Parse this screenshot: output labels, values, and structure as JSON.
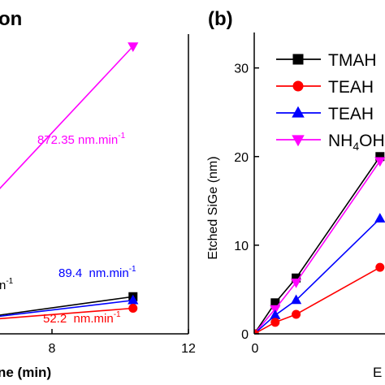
{
  "chart_data": [
    {
      "type": "line",
      "title": "on",
      "xlabel": "ne (min)",
      "ylabel": "",
      "xlim": [
        5.2,
        12
      ],
      "ylim": [
        -4.2,
        45
      ],
      "x_ticks": [
        "8",
        "12"
      ],
      "series": [
        {
          "color": "#ff00ff",
          "marker": "triangle-down",
          "x": [
            3,
            10
          ],
          "y": [
            9,
            43
          ]
        },
        {
          "color": "#000000",
          "marker": "square",
          "x": [
            3,
            10
          ],
          "y": [
            -2.5,
            1.9
          ]
        },
        {
          "color": "#0000ff",
          "marker": "triangle-up",
          "x": [
            3,
            10
          ],
          "y": [
            -2.5,
            1.3
          ]
        },
        {
          "color": "#ff0000",
          "marker": "circle",
          "x": [
            3,
            10
          ],
          "y": [
            -2.5,
            0.0
          ]
        }
      ],
      "annotations": [
        {
          "text": "872.35 nm.min",
          "sup": "-1",
          "color": "#ff00ff"
        },
        {
          "text": "89.4  nm.min",
          "sup": "-1",
          "color": "#0000ff"
        },
        {
          "text": "52.2  nm.min",
          "sup": "-1",
          "color": "#ff0000"
        },
        {
          "text": "n",
          "sup": "-1",
          "color": "#000000"
        }
      ]
    },
    {
      "type": "line",
      "panel_label": "(b)",
      "xlabel": "E",
      "ylabel": "Etched SiGe (nm)",
      "xlim": [
        0,
        6
      ],
      "ylim": [
        0,
        34
      ],
      "y_ticks": [
        0,
        10,
        20,
        30
      ],
      "x_ticks": [
        "0"
      ],
      "legend": {
        "placement": "top-right",
        "entries": [
          {
            "label": "TMAH",
            "sub": "",
            "after": "",
            "color": "#000000",
            "marker": "square"
          },
          {
            "label": "TEAH",
            "sub": "",
            "after": "",
            "color": "#ff0000",
            "marker": "circle"
          },
          {
            "label": "TEAH",
            "sub": "",
            "after": "",
            "color": "#0000ff",
            "marker": "triangle-up"
          },
          {
            "label": "NH",
            "sub": "4",
            "after": "OH",
            "color": "#ff00ff",
            "marker": "triangle-down"
          }
        ]
      },
      "series": [
        {
          "color": "#000000",
          "marker": "square",
          "x": [
            0,
            1,
            2,
            6
          ],
          "y": [
            0,
            3.5,
            6.3,
            20
          ]
        },
        {
          "color": "#ff00ff",
          "marker": "triangle-down",
          "x": [
            0,
            1,
            2,
            6
          ],
          "y": [
            0,
            2.8,
            5.8,
            19.5
          ]
        },
        {
          "color": "#0000ff",
          "marker": "triangle-up",
          "x": [
            0,
            1,
            2,
            6
          ],
          "y": [
            0,
            2.1,
            3.8,
            13
          ]
        },
        {
          "color": "#ff0000",
          "marker": "circle",
          "x": [
            0,
            1,
            2,
            6
          ],
          "y": [
            0,
            1.3,
            2.2,
            7.5
          ]
        }
      ]
    }
  ]
}
